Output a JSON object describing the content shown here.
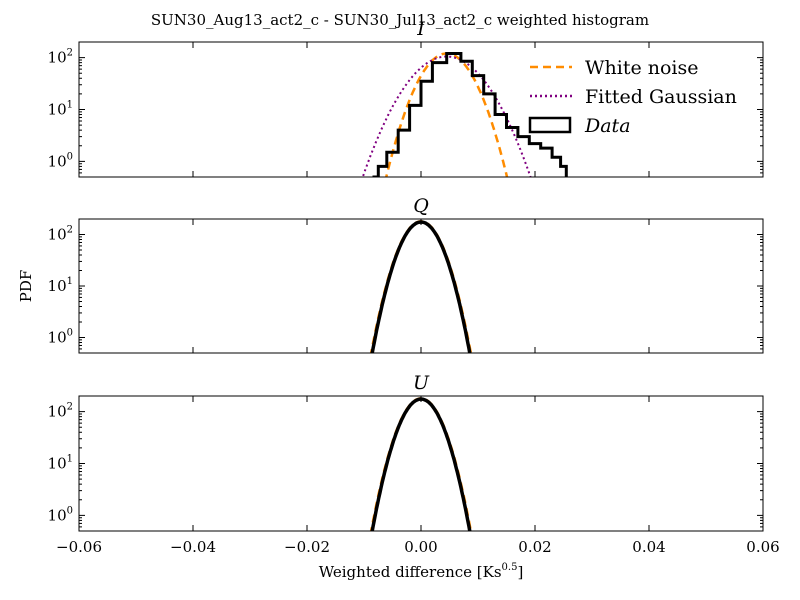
{
  "figure": {
    "suptitle": "SUN30_Aug13_act2_c - SUN30_Jul13_act2_c weighted histogram",
    "ylabel": "PDF",
    "xlabel_prefix": "Weighted difference [Ks",
    "xlabel_exp": "0.5",
    "xlabel_suffix": "]"
  },
  "legend": {
    "placement": "upper-right",
    "entries": [
      {
        "label": "White noise",
        "style": "dashed",
        "color": "#ff8c00"
      },
      {
        "label": "Fitted Gaussian",
        "style": "dotted",
        "color": "#800080"
      },
      {
        "label": "Data",
        "style": "patch",
        "color": "#000000",
        "italic": true
      }
    ]
  },
  "chart_data": [
    {
      "type": "line",
      "title": "I",
      "yscale": "log",
      "xlim": [
        -0.06,
        0.06
      ],
      "ylim": [
        0.5,
        200
      ],
      "x_ticks": [
        "−0.06",
        "−0.04",
        "−0.02",
        "0.00",
        "0.02",
        "0.04",
        "0.06"
      ],
      "y_ticks": [
        {
          "value": 1,
          "base": "10",
          "exp": "0"
        },
        {
          "value": 10,
          "base": "10",
          "exp": "1"
        },
        {
          "value": 100,
          "base": "10",
          "exp": "2"
        }
      ],
      "series": [
        {
          "name": "White noise",
          "kind": "gaussian",
          "peak": 120,
          "center": 0.0045,
          "sigma": 0.0032
        },
        {
          "name": "Fitted Gaussian",
          "kind": "gaussian",
          "peak": 105,
          "center": 0.0045,
          "sigma": 0.0045
        },
        {
          "name": "Data",
          "kind": "histogram",
          "points": [
            [
              -0.0085,
              0.5
            ],
            [
              -0.0075,
              0.8
            ],
            [
              -0.006,
              1.5
            ],
            [
              -0.004,
              4
            ],
            [
              -0.002,
              12
            ],
            [
              0.0,
              35
            ],
            [
              0.002,
              80
            ],
            [
              0.0045,
              120
            ],
            [
              0.007,
              85
            ],
            [
              0.009,
              45
            ],
            [
              0.011,
              20
            ],
            [
              0.013,
              8
            ],
            [
              0.015,
              4.5
            ],
            [
              0.017,
              3
            ],
            [
              0.019,
              2.2
            ],
            [
              0.021,
              1.8
            ],
            [
              0.023,
              1.2
            ],
            [
              0.0245,
              0.8
            ],
            [
              0.0255,
              0.5
            ]
          ]
        }
      ]
    },
    {
      "type": "line",
      "title": "Q",
      "yscale": "log",
      "xlim": [
        -0.06,
        0.06
      ],
      "ylim": [
        0.5,
        200
      ],
      "x_ticks": [
        "−0.06",
        "−0.04",
        "−0.02",
        "0.00",
        "0.02",
        "0.04",
        "0.06"
      ],
      "y_ticks": [
        {
          "value": 1,
          "base": "10",
          "exp": "0"
        },
        {
          "value": 10,
          "base": "10",
          "exp": "1"
        },
        {
          "value": 100,
          "base": "10",
          "exp": "2"
        }
      ],
      "series": [
        {
          "name": "White noise",
          "kind": "gaussian",
          "peak": 180,
          "center": 0.0,
          "sigma": 0.00255
        },
        {
          "name": "Data",
          "kind": "gaussian",
          "peak": 175,
          "center": 0.0,
          "sigma": 0.0025
        }
      ]
    },
    {
      "type": "line",
      "title": "U",
      "yscale": "log",
      "xlim": [
        -0.06,
        0.06
      ],
      "ylim": [
        0.5,
        200
      ],
      "x_ticks": [
        "−0.06",
        "−0.04",
        "−0.02",
        "0.00",
        "0.02",
        "0.04",
        "0.06"
      ],
      "y_ticks": [
        {
          "value": 1,
          "base": "10",
          "exp": "0"
        },
        {
          "value": 10,
          "base": "10",
          "exp": "1"
        },
        {
          "value": 100,
          "base": "10",
          "exp": "2"
        }
      ],
      "series": [
        {
          "name": "White noise",
          "kind": "gaussian",
          "peak": 180,
          "center": 0.0,
          "sigma": 0.00255
        },
        {
          "name": "Data",
          "kind": "gaussian",
          "peak": 175,
          "center": 0.0,
          "sigma": 0.0025
        }
      ]
    }
  ]
}
